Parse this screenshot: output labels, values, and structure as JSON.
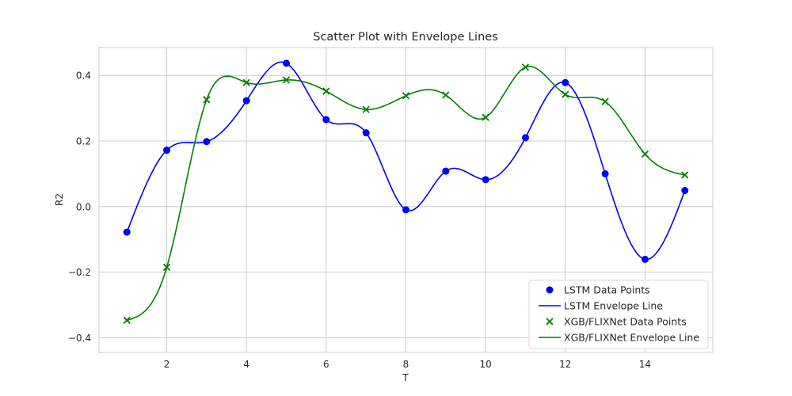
{
  "chart_data": {
    "type": "scatter",
    "title": "Scatter Plot with Envelope Lines",
    "xlabel": "T",
    "ylabel": "R2",
    "xlim": [
      0.3,
      15.7
    ],
    "ylim": [
      -0.445,
      0.485
    ],
    "xticks": [
      2,
      4,
      6,
      8,
      10,
      12,
      14
    ],
    "xtick_labels": [
      "2",
      "4",
      "6",
      "8",
      "10",
      "12",
      "14"
    ],
    "yticks": [
      -0.4,
      -0.2,
      0.0,
      0.2,
      0.4
    ],
    "ytick_labels": [
      "−0.4",
      "−0.2",
      "0.0",
      "0.2",
      "0.4"
    ],
    "grid": true,
    "legend_position": "bottom-right",
    "x": [
      1,
      2,
      3,
      4,
      5,
      6,
      7,
      8,
      9,
      10,
      11,
      12,
      13,
      14,
      15
    ],
    "series": [
      {
        "name": "LSTM Data Points",
        "kind": "points",
        "marker": "circle",
        "color": "#0000ff",
        "values": [
          -0.078,
          0.172,
          0.198,
          0.323,
          0.437,
          0.265,
          0.225,
          -0.01,
          0.108,
          0.082,
          0.21,
          0.378,
          0.1,
          -0.161,
          0.049
        ]
      },
      {
        "name": "LSTM Envelope Line",
        "kind": "line",
        "color": "#0000ff",
        "values": [
          -0.078,
          0.172,
          0.198,
          0.323,
          0.437,
          0.265,
          0.225,
          -0.01,
          0.108,
          0.082,
          0.21,
          0.378,
          0.1,
          -0.161,
          0.049
        ]
      },
      {
        "name": "XGB/FLIXNet Data Points",
        "kind": "points",
        "marker": "x",
        "color": "#008000",
        "values": [
          -0.347,
          -0.185,
          0.326,
          0.378,
          0.386,
          0.352,
          0.296,
          0.338,
          0.34,
          0.272,
          0.425,
          0.342,
          0.32,
          0.16,
          0.096
        ]
      },
      {
        "name": "XGB/FLIXNet Envelope Line",
        "kind": "line",
        "color": "#008000",
        "values": [
          -0.347,
          -0.185,
          0.326,
          0.378,
          0.386,
          0.352,
          0.296,
          0.338,
          0.34,
          0.272,
          0.425,
          0.342,
          0.32,
          0.16,
          0.096
        ]
      }
    ]
  }
}
